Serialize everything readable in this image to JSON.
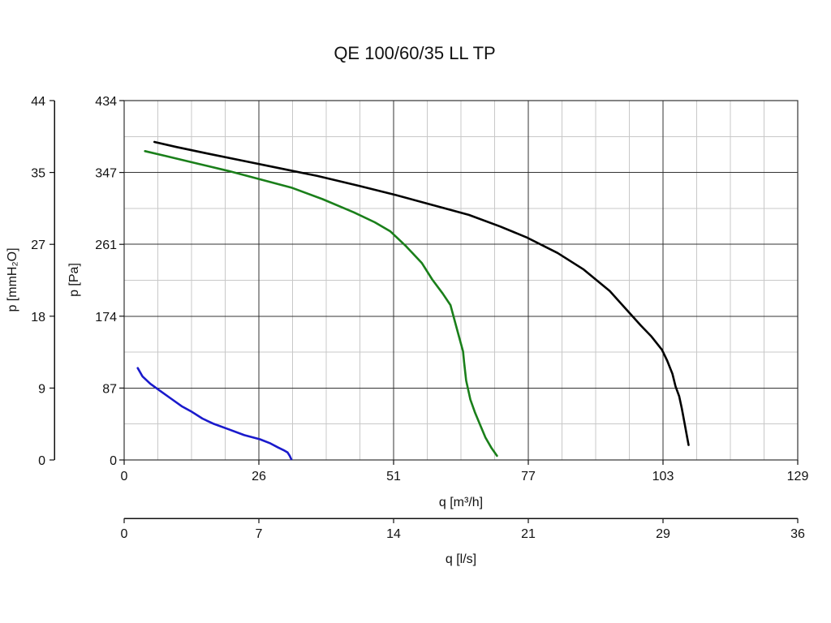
{
  "chart_data": {
    "type": "line",
    "title": "QE 100/60/35 LL TP",
    "xlabel": "q [m³/h]",
    "ylabel": "p [Pa]",
    "x_ticks": [
      "0",
      "26",
      "51",
      "77",
      "103",
      "129"
    ],
    "y_ticks": [
      "0",
      "87",
      "174",
      "261",
      "347",
      "434"
    ],
    "xlim": [
      0,
      129
    ],
    "ylim": [
      0,
      434
    ],
    "grid": true,
    "secondary_x_axis": {
      "label": "q [l/s]",
      "ticks": [
        "0",
        "7",
        "14",
        "21",
        "29",
        "36"
      ]
    },
    "secondary_y_axis": {
      "label": "p [mmH₂O]",
      "ticks": [
        "0",
        "9",
        "18",
        "27",
        "35",
        "44"
      ]
    },
    "series": [
      {
        "color": "#000000",
        "x": [
          5.8,
          10,
          16,
          23,
          30,
          37,
          45,
          52,
          59,
          66,
          72,
          77,
          83,
          88,
          93,
          96,
          99,
          101,
          103,
          104,
          105,
          105.6,
          106.3,
          106.8,
          107.4,
          108.1
        ],
        "y": [
          384,
          378,
          370,
          361,
          352,
          343,
          331,
          320,
          308,
          296,
          282,
          269,
          250,
          230,
          204,
          183,
          162,
          149,
          133,
          120,
          104,
          89,
          77,
          62,
          42,
          18
        ]
      },
      {
        "color": "#1a7f1a",
        "x": [
          4,
          8,
          14,
          20,
          26,
          32,
          38,
          44,
          48,
          51,
          54,
          57,
          59,
          61,
          62.5,
          63.4,
          64.3,
          64.9,
          65.1,
          65.5,
          66.3,
          67.2,
          68.2,
          69.2,
          70.3,
          71.4
        ],
        "y": [
          373,
          367,
          358,
          349,
          339,
          329,
          315,
          299,
          287,
          276,
          258,
          238,
          218,
          201,
          187,
          166,
          145,
          131,
          118,
          96,
          73,
          57,
          42,
          27,
          15,
          5
        ]
      },
      {
        "color": "#1a1acc",
        "x": [
          2.6,
          3.5,
          5,
          7,
          9,
          11,
          13,
          15,
          17,
          20,
          23,
          26,
          28,
          29.5,
          30.5,
          31.3,
          31.7,
          32
        ],
        "y": [
          111,
          101,
          92,
          83,
          74,
          65,
          58,
          50,
          44,
          37,
          30,
          25,
          20,
          15,
          12,
          9,
          5,
          1
        ]
      }
    ]
  }
}
